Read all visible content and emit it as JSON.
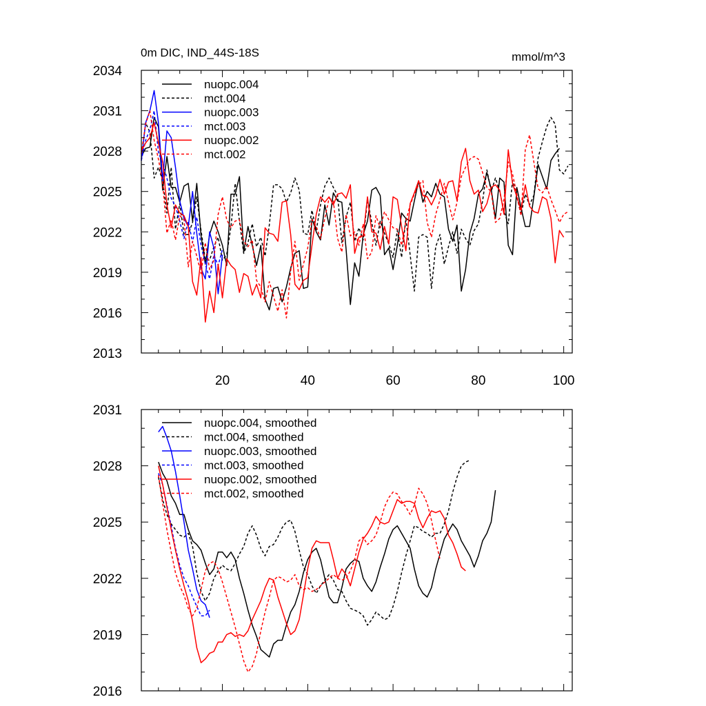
{
  "chart_data": [
    {
      "type": "line",
      "title": "0m DIC, IND_44S-18S",
      "units": "mmol/m^3",
      "xlim": [
        1,
        102
      ],
      "ylim": [
        2013,
        2034
      ],
      "xticks": [
        20,
        40,
        60,
        80,
        100
      ],
      "yticks": [
        2013,
        2016,
        2019,
        2022,
        2025,
        2028,
        2031,
        2034
      ],
      "xtick_labels": [
        "20",
        "40",
        "60",
        "80",
        "100"
      ],
      "ytick_labels": [
        "2013",
        "2016",
        "2019",
        "2022",
        "2025",
        "2028",
        "2031",
        "2034"
      ],
      "legend_position": "top-left",
      "series": [
        {
          "name": "nuopc.004",
          "color": "#000000",
          "dash": "solid",
          "x_start": 1,
          "values": [
            2027.6,
            2028.2,
            2028.3,
            2030.5,
            2029.8,
            2025.1,
            2027.6,
            2025.3,
            2025.3,
            2024.2,
            2025.4,
            2025.6,
            2022.8,
            2025.6,
            2021.7,
            2019.6,
            2021.8,
            2022.8,
            2022.0,
            2021.0,
            2019.5,
            2024.8,
            2024.8,
            2026.1,
            2020.5,
            2022.4,
            2021.0,
            2019.5,
            2021.0,
            2017.0,
            2016.2,
            2017.8,
            2017.9,
            2016.8,
            2017.9,
            2019.3,
            2020.4,
            2020.6,
            2017.8,
            2017.9,
            2023.0,
            2022.0,
            2021.4,
            2024.0,
            2022.5,
            2024.9,
            2024.3,
            2024.2,
            2020.7,
            2016.6,
            2019.7,
            2018.7,
            2021.8,
            2022.8,
            2025.1,
            2025.3,
            2024.7,
            2020.3,
            2020.8,
            2019.2,
            2021.0,
            2023.4,
            2023.0,
            2022.8,
            2024.3,
            2025.8,
            2024.2,
            2025.0,
            2024.6,
            2025.6,
            2024.8,
            2024.6,
            2022.2,
            2021.3,
            2022.5,
            2017.6,
            2019.2,
            2021.9,
            2023.0,
            2024.8,
            2025.2,
            2026.4,
            2025.2,
            2023.0,
            2026.0,
            2025.7,
            2021.0,
            2020.3,
            2025.3,
            2023.8,
            2022.4,
            2022.4,
            2024.6,
            2027.0,
            2026.1,
            2025.2,
            2027.3,
            2027.8,
            2028.2
          ]
        },
        {
          "name": "mct.004",
          "color": "#000000",
          "dash": "dashed",
          "x_start": 1,
          "values": [
            2027.4,
            2030.1,
            2029.4,
            2026.0,
            2026.8,
            2025.8,
            2023.4,
            2026.8,
            2022.2,
            2024.1,
            2021.8,
            2021.8,
            2022.7,
            2024.6,
            2022.1,
            2019.9,
            2019.9,
            2020.9,
            2021.6,
            2019.9,
            2020.3,
            2022.4,
            2025.6,
            2022.8,
            2020.4,
            2021.2,
            2022.6,
            2020.9,
            2021.6,
            2020.2,
            2022.5,
            2025.5,
            2025.5,
            2025.2,
            2024.2,
            2024.9,
            2026.0,
            2025.1,
            2021.9,
            2021.8,
            2023.6,
            2022.1,
            2024.0,
            2025.4,
            2026.0,
            2025.3,
            2024.7,
            2021.2,
            2023.1,
            2024.2,
            2021.3,
            2022.3,
            2021.4,
            2024.4,
            2022.7,
            2021.0,
            2022.8,
            2021.9,
            2021.1,
            2020.1,
            2022.1,
            2020.1,
            2023.0,
            2020.3,
            2017.6,
            2021.6,
            2021.8,
            2021.6,
            2017.8,
            2020.9,
            2021.8,
            2019.6,
            2020.9,
            2022.0,
            2020.4,
            2022.2,
            2021.5,
            2021.0,
            2022.1,
            2022.6,
            2024.3,
            2026.6,
            2025.0,
            2026.0,
            2025.0,
            2023.5,
            2022.6,
            2025.8,
            2024.6,
            2023.3,
            2024.8,
            2024.0,
            2024.7,
            2027.5,
            2028.7,
            2029.8,
            2030.5,
            2030.0,
            2026.6,
            2026.3,
            2026.9
          ]
        },
        {
          "name": "nuopc.003",
          "color": "#0000ff",
          "dash": "solid",
          "x_start": 1,
          "values": [
            2027.3,
            2030.1,
            2031.0,
            2032.5,
            2030.1,
            2025.8,
            2029.5,
            2029.0,
            2026.8,
            2024.3,
            2023.0,
            2022.4,
            2025.0,
            2021.9,
            2019.3,
            2018.5,
            2022.0,
            2020.8,
            2017.4,
            2020.3
          ]
        },
        {
          "name": "mct.003",
          "color": "#0000ff",
          "dash": "dashed",
          "x_start": 1,
          "values": [
            2027.3,
            2028.8,
            2029.6,
            2031.0,
            2027.9,
            2027.1,
            2026.0,
            2024.5,
            2023.9,
            2022.8,
            2021.5,
            2022.8,
            2021.2,
            2023.1,
            2021.0,
            2019.6,
            2018.5,
            2020.3,
            2019.5,
            2020.7
          ]
        },
        {
          "name": "nuopc.002",
          "color": "#ff0000",
          "dash": "solid",
          "x_start": 1,
          "values": [
            2028.0,
            2028.6,
            2029.0,
            2030.1,
            2028.6,
            2027.2,
            2024.0,
            2022.3,
            2024.0,
            2023.4,
            2023.2,
            2022.4,
            2018.3,
            2017.3,
            2020.1,
            2015.3,
            2017.6,
            2016.0,
            2019.6,
            2017.1,
            2020.0,
            2019.5,
            2019.2,
            2017.5,
            2018.9,
            2018.7,
            2017.3,
            2018.1,
            2017.1,
            2022.3,
            2021.9,
            2021.8,
            2021.3,
            2024.2,
            2024.3,
            2021.8,
            2018.1,
            2017.7,
            2018.4,
            2018.6,
            2021.0,
            2023.3,
            2024.6,
            2024.2,
            2024.6,
            2024.0,
            2024.8,
            2024.9,
            2024.5,
            2025.5,
            2020.4,
            2021.6,
            2021.7,
            2024.6,
            2022.0,
            2021.9,
            2020.7,
            2022.4,
            2021.1,
            2024.6,
            2024.4,
            2022.4,
            2020.6,
            2024.1,
            2024.9,
            2025.8,
            2024.7,
            2024.6,
            2024.0,
            2024.7,
            2025.9,
            2024.8,
            2025.7,
            2025.8,
            2024.3,
            2027.2,
            2028.2,
            2025.8,
            2024.8,
            2025.1,
            2023.5,
            2024.1,
            2025.3,
            2025.5,
            2025.1,
            2023.3,
            2028.1,
            2025.6,
            2024.6,
            2023.6,
            2025.5,
            2023.9,
            2023.5,
            2023.4,
            2024.6,
            2024.4,
            2023.0,
            2019.7,
            2022.1,
            2021.6
          ]
        },
        {
          "name": "mct.002",
          "color": "#ff0000",
          "dash": "dashed",
          "x_start": 1,
          "values": [
            2027.8,
            2030.0,
            2031.0,
            2028.8,
            2027.4,
            2025.7,
            2021.9,
            2022.9,
            2021.4,
            2023.2,
            2022.9,
            2019.4,
            2021.3,
            2020.2,
            2018.9,
            2021.2,
            2019.2,
            2019.9,
            2023.3,
            2024.6,
            2022.9,
            2022.3,
            2022.8,
            2022.9,
            2021.3,
            2020.9,
            2021.4,
            2018.4,
            2017.9,
            2016.8,
            2018.3,
            2017.2,
            2016.1,
            2017.7,
            2015.6,
            2019.1,
            2021.3,
            2018.4,
            2019.6,
            2020.8,
            2022.9,
            2022.4,
            2021.5,
            2023.0,
            2024.5,
            2024.3,
            2021.5,
            2020.5,
            2023.3,
            2021.7,
            2022.0,
            2021.0,
            2022.6,
            2020.0,
            2020.5,
            2023.2,
            2022.3,
            2023.5,
            2022.9,
            2022.3,
            2022.2,
            2021.0,
            2022.8,
            2024.0,
            2024.8,
            2025.5,
            2025.8,
            2022.7,
            2021.6,
            2023.3,
            2024.4,
            2025.6,
            2024.2,
            2022.9,
            2024.2,
            2026.1,
            2026.8,
            2027.4,
            2027.6,
            2027.4,
            2026.4,
            2025.3,
            2025.0,
            2022.7,
            2023.0,
            2024.4,
            2027.2,
            2026.3,
            2024.8,
            2023.2,
            2028.1,
            2029.2,
            2027.2,
            2025.2,
            2024.9,
            2025.4,
            2024.4,
            2023.6,
            2022.7,
            2023.3,
            2023.5
          ]
        }
      ]
    },
    {
      "type": "line",
      "title": "",
      "xlim": [
        1,
        102
      ],
      "ylim": [
        2016,
        2031
      ],
      "xticks": [
        20,
        40,
        60,
        80,
        100
      ],
      "yticks": [
        2016,
        2019,
        2022,
        2025,
        2028,
        2031
      ],
      "ytick_labels": [
        "2016",
        "2019",
        "2022",
        "2025",
        "2028",
        "2031"
      ],
      "legend_position": "top-left",
      "series": [
        {
          "name": "nuopc.004, smoothed",
          "color": "#000000",
          "dash": "solid",
          "x_start": 5,
          "values": [
            2028.2,
            2027.6,
            2027.2,
            2026.4,
            2026.0,
            2025.4,
            2025.4,
            2024.6,
            2024.0,
            2023.8,
            2023.5,
            2022.8,
            2022.2,
            2022.5,
            2023.4,
            2023.4,
            2023.1,
            2023.4,
            2023.0,
            2022.0,
            2021.2,
            2020.3,
            2019.5,
            2018.9,
            2018.2,
            2018.0,
            2017.8,
            2018.5,
            2018.7,
            2018.7,
            2019.5,
            2020.2,
            2020.6,
            2021.3,
            2022.3,
            2023.0,
            2023.4,
            2023.6,
            2023.0,
            2022.0,
            2021.0,
            2020.7,
            2020.7,
            2021.5,
            2022.5,
            2022.8,
            2023.0,
            2022.9,
            2022.0,
            2021.6,
            2021.3,
            2021.8,
            2022.6,
            2023.3,
            2024.1,
            2024.6,
            2024.8,
            2024.4,
            2024.0,
            2023.6,
            2022.5,
            2021.6,
            2021.2,
            2021.0,
            2021.5,
            2022.5,
            2023.3,
            2024.1,
            2024.5,
            2024.9,
            2024.6,
            2024.0,
            2023.6,
            2023.2,
            2022.6,
            2023.2,
            2024.0,
            2024.4,
            2025.0,
            2026.7
          ]
        },
        {
          "name": "mct.004, smoothed",
          "color": "#000000",
          "dash": "dashed",
          "x_start": 5,
          "values": [
            2027.4,
            2026.2,
            2025.4,
            2024.9,
            2024.6,
            2024.3,
            2024.2,
            2024.4,
            2023.7,
            2022.3,
            2021.3,
            2020.8,
            2021.2,
            2022.0,
            2022.4,
            2022.7,
            2022.5,
            2022.4,
            2022.8,
            2023.3,
            2023.7,
            2024.4,
            2024.8,
            2024.3,
            2023.6,
            2023.2,
            2023.7,
            2023.8,
            2024.2,
            2024.7,
            2025.0,
            2025.1,
            2024.5,
            2023.5,
            2022.6,
            2022.2,
            2021.6,
            2021.2,
            2021.6,
            2021.9,
            2022.2,
            2021.9,
            2021.4,
            2021.3,
            2020.8,
            2020.4,
            2020.3,
            2020.2,
            2020.0,
            2019.5,
            2019.8,
            2020.2,
            2020.0,
            2019.8,
            2019.9,
            2020.5,
            2021.3,
            2022.3,
            2023.2,
            2024.0,
            2024.8,
            2024.7,
            2024.5,
            2024.4,
            2024.2,
            2024.4,
            2024.4,
            2024.9,
            2025.6,
            2026.6,
            2027.4,
            2028.0,
            2028.2,
            2028.3
          ]
        },
        {
          "name": "nuopc.003, smoothed",
          "color": "#0000ff",
          "dash": "solid",
          "x_start": 5,
          "values": [
            2029.8,
            2030.1,
            2029.5,
            2028.8,
            2027.7,
            2026.4,
            2025.0,
            2023.5,
            2022.5,
            2021.4,
            2020.8,
            2020.6,
            2019.9
          ]
        },
        {
          "name": "mct.003, smoothed",
          "color": "#0000ff",
          "dash": "dashed",
          "x_start": 5,
          "values": [
            2027.6,
            2027.0,
            2025.9,
            2024.8,
            2023.6,
            2022.7,
            2022.0,
            2021.6,
            2021.0,
            2020.5,
            2020.0,
            2020.0,
            2020.3
          ]
        },
        {
          "name": "nuopc.002, smoothed",
          "color": "#ff0000",
          "dash": "solid",
          "x_start": 5,
          "values": [
            2028.0,
            2027.0,
            2025.8,
            2024.6,
            2023.5,
            2022.5,
            2021.6,
            2020.8,
            2019.7,
            2018.3,
            2017.5,
            2017.7,
            2018.0,
            2018.1,
            2018.6,
            2018.6,
            2019.0,
            2019.1,
            2018.9,
            2019.0,
            2018.9,
            2019.2,
            2019.8,
            2020.3,
            2020.8,
            2021.5,
            2022.0,
            2021.9,
            2021.0,
            2020.3,
            2019.6,
            2019.0,
            2019.2,
            2019.8,
            2021.1,
            2022.5,
            2023.6,
            2024.0,
            2023.9,
            2023.9,
            2023.9,
            2023.0,
            2022.0,
            2022.5,
            2022.2,
            2021.6,
            2022.5,
            2023.4,
            2024.1,
            2024.4,
            2024.8,
            2025.3,
            2025.0,
            2024.9,
            2025.0,
            2025.6,
            2026.2,
            2026.0,
            2026.1,
            2026.1,
            2026.0,
            2025.2,
            2024.7,
            2025.2,
            2025.6,
            2025.5,
            2025.6,
            2025.2,
            2024.3,
            2023.9,
            2023.3,
            2022.6,
            2022.4
          ]
        },
        {
          "name": "mct.002, smoothed",
          "color": "#ff0000",
          "dash": "dashed",
          "x_start": 5,
          "values": [
            2027.5,
            2026.0,
            2024.6,
            2023.4,
            2022.3,
            2021.6,
            2021.1,
            2020.4,
            2020.0,
            2020.4,
            2021.4,
            2022.4,
            2022.8,
            2022.9,
            2022.5,
            2021.8,
            2021.0,
            2020.2,
            2019.4,
            2018.5,
            2017.6,
            2017.0,
            2017.3,
            2018.0,
            2019.2,
            2020.2,
            2021.0,
            2021.9,
            2022.1,
            2022.0,
            2021.8,
            2021.9,
            2022.2,
            2021.6,
            2021.4,
            2021.5,
            2021.3,
            2021.4,
            2021.6,
            2021.8,
            2022.0,
            2022.2,
            2022.0,
            2021.9,
            2022.0,
            2022.4,
            2023.0,
            2024.0,
            2024.2,
            2023.8,
            2024.0,
            2024.3,
            2025.0,
            2025.8,
            2026.3,
            2026.6,
            2026.5,
            2026.1,
            2025.8,
            2025.4,
            2025.9,
            2026.8,
            2026.5,
            2026.0,
            2025.1,
            2024.0,
            2023.0
          ]
        }
      ]
    }
  ]
}
